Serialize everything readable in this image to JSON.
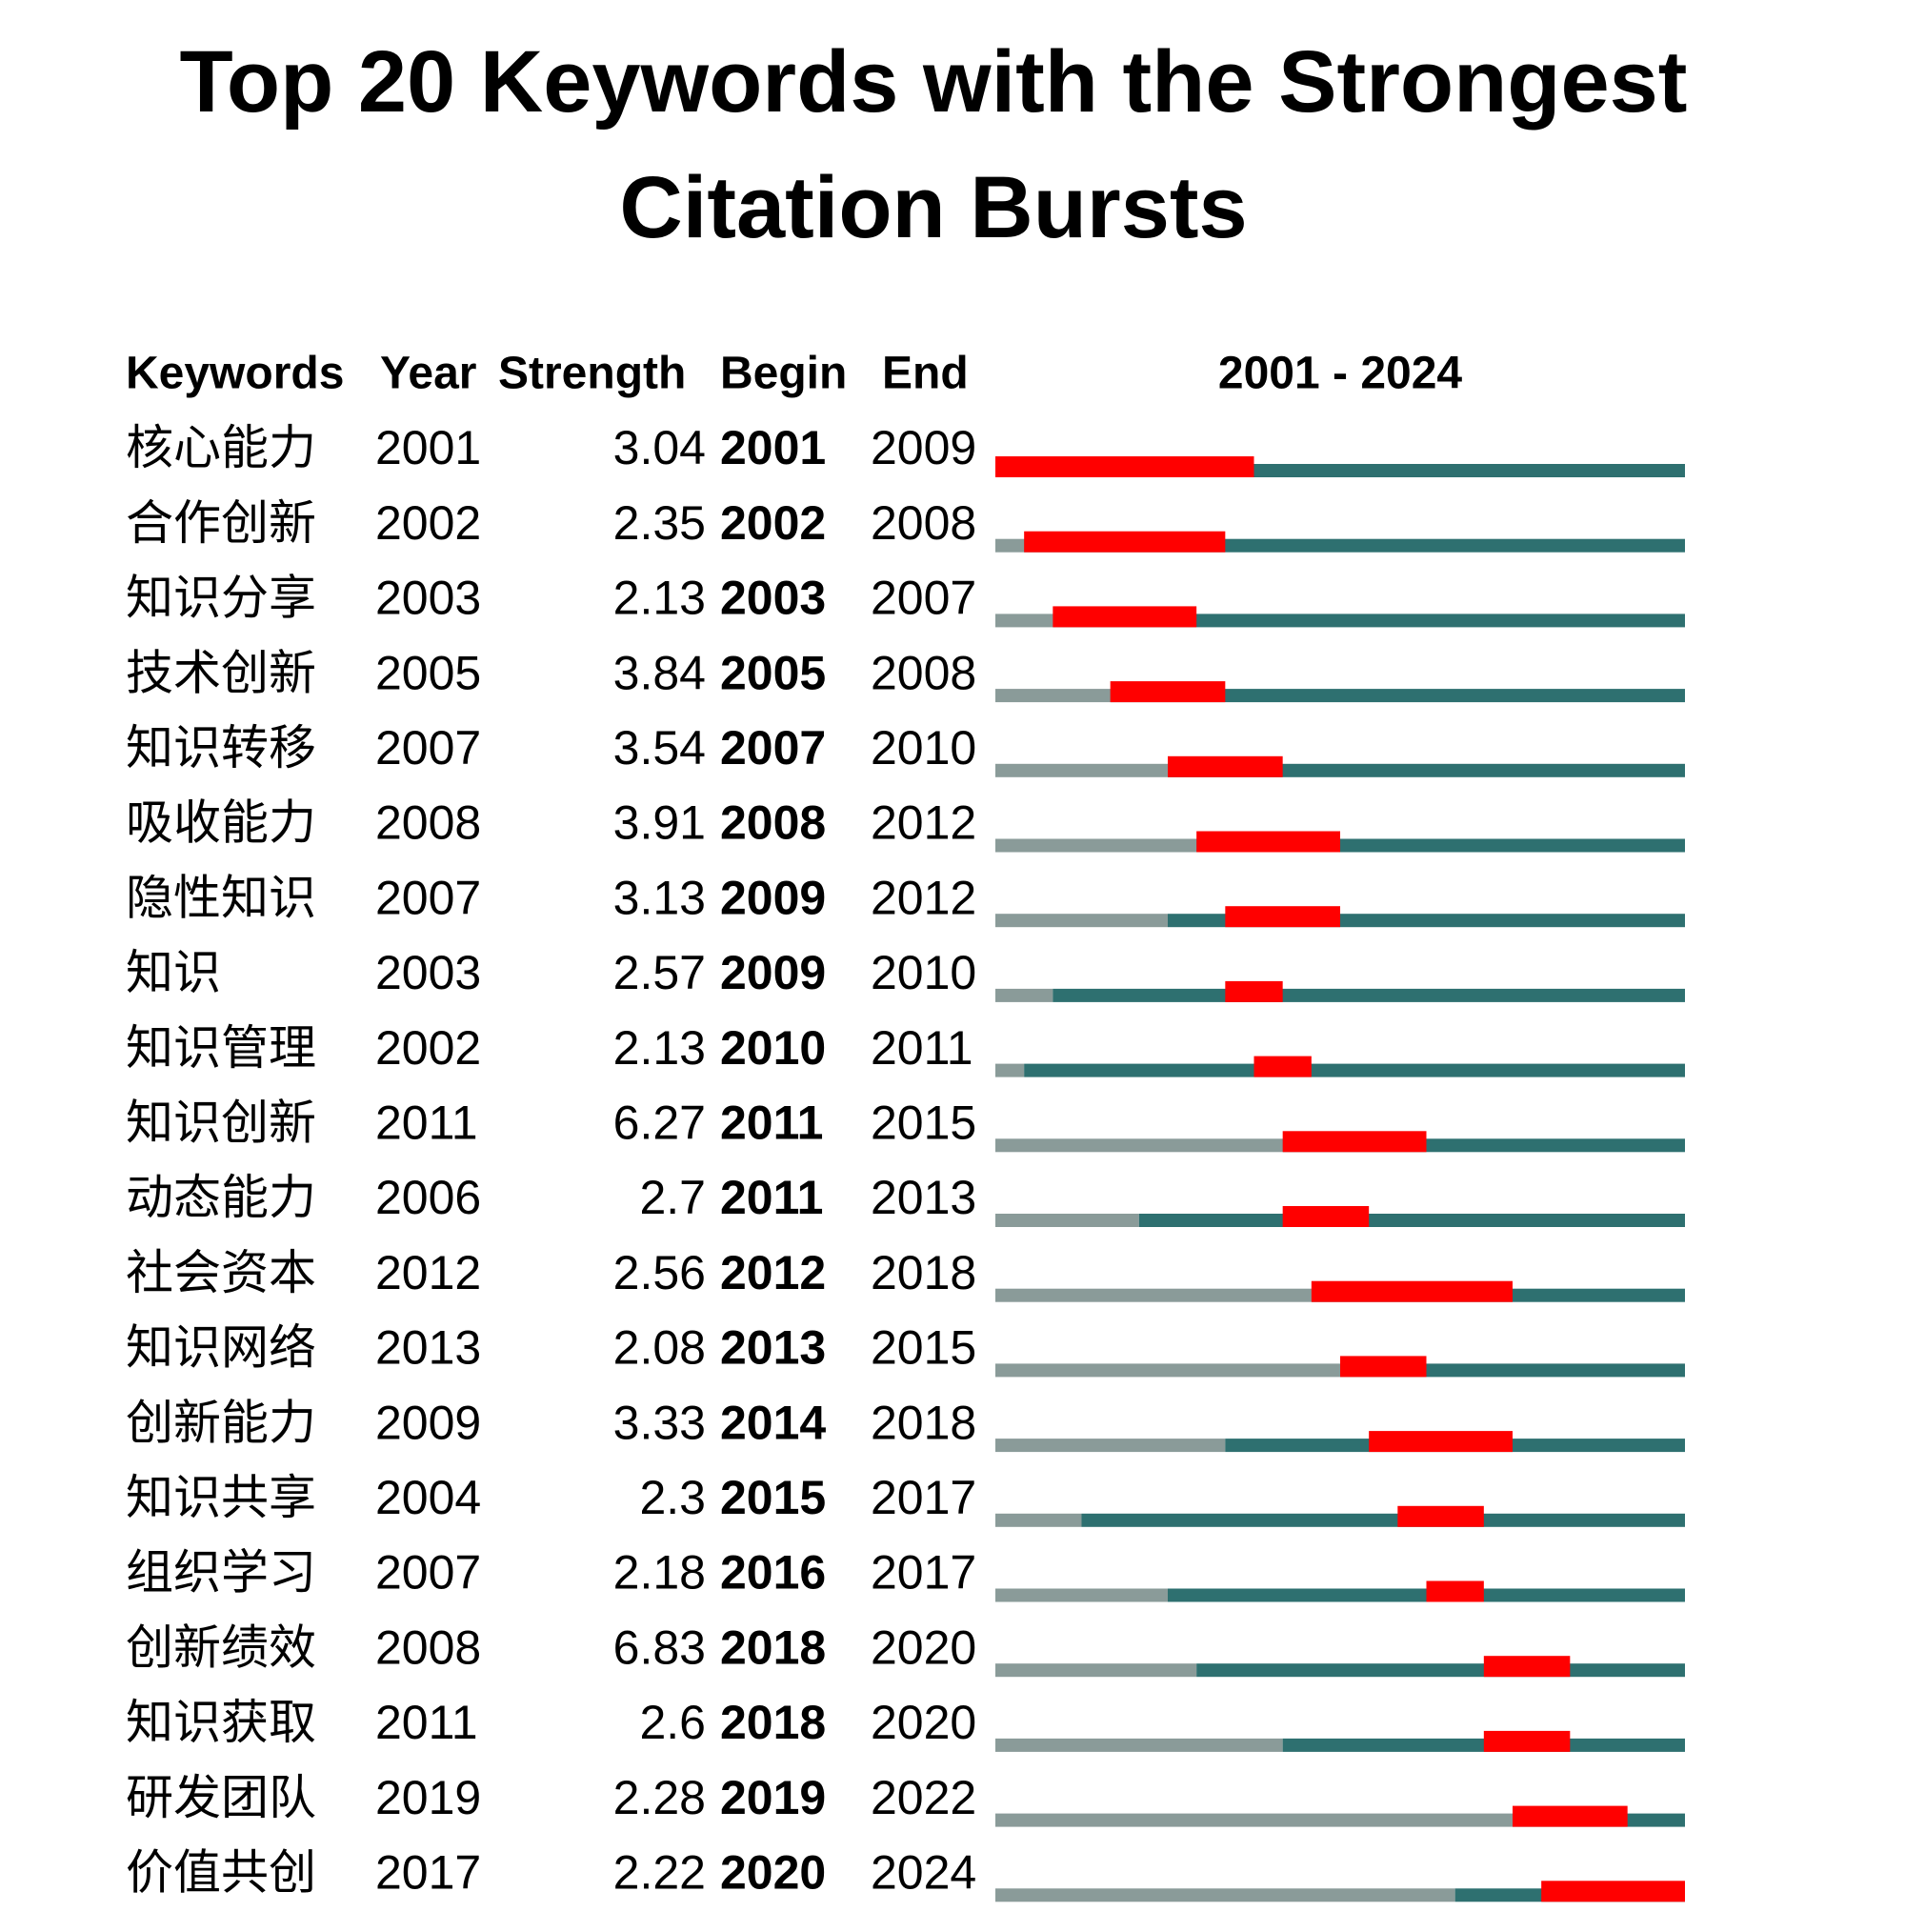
{
  "chart_data": {
    "type": "citation-burst",
    "title": "Top 20 Keywords with the Strongest Citation Bursts",
    "headers": [
      "Keywords",
      "Year",
      "Strength",
      "Begin",
      "End"
    ],
    "timeline_label": "2001 - 2024",
    "xlim": [
      2001,
      2024
    ],
    "colors": {
      "before": "#8a9b99",
      "after": "#2e7070",
      "burst": "#ff0000"
    },
    "rows": [
      {
        "keyword": "核心能力",
        "year": 2001,
        "strength": 3.04,
        "begin": 2001,
        "end": 2009
      },
      {
        "keyword": "合作创新",
        "year": 2002,
        "strength": 2.35,
        "begin": 2002,
        "end": 2008
      },
      {
        "keyword": "知识分享",
        "year": 2003,
        "strength": 2.13,
        "begin": 2003,
        "end": 2007
      },
      {
        "keyword": "技术创新",
        "year": 2005,
        "strength": 3.84,
        "begin": 2005,
        "end": 2008
      },
      {
        "keyword": "知识转移",
        "year": 2007,
        "strength": 3.54,
        "begin": 2007,
        "end": 2010
      },
      {
        "keyword": "吸收能力",
        "year": 2008,
        "strength": 3.91,
        "begin": 2008,
        "end": 2012
      },
      {
        "keyword": "隐性知识",
        "year": 2007,
        "strength": 3.13,
        "begin": 2009,
        "end": 2012
      },
      {
        "keyword": "知识",
        "year": 2003,
        "strength": 2.57,
        "begin": 2009,
        "end": 2010
      },
      {
        "keyword": "知识管理",
        "year": 2002,
        "strength": 2.13,
        "begin": 2010,
        "end": 2011
      },
      {
        "keyword": "知识创新",
        "year": 2011,
        "strength": 6.27,
        "begin": 2011,
        "end": 2015
      },
      {
        "keyword": "动态能力",
        "year": 2006,
        "strength": 2.7,
        "begin": 2011,
        "end": 2013
      },
      {
        "keyword": "社会资本",
        "year": 2012,
        "strength": 2.56,
        "begin": 2012,
        "end": 2018
      },
      {
        "keyword": "知识网络",
        "year": 2013,
        "strength": 2.08,
        "begin": 2013,
        "end": 2015
      },
      {
        "keyword": "创新能力",
        "year": 2009,
        "strength": 3.33,
        "begin": 2014,
        "end": 2018
      },
      {
        "keyword": "知识共享",
        "year": 2004,
        "strength": 2.3,
        "begin": 2015,
        "end": 2017
      },
      {
        "keyword": "组织学习",
        "year": 2007,
        "strength": 2.18,
        "begin": 2016,
        "end": 2017
      },
      {
        "keyword": "创新绩效",
        "year": 2008,
        "strength": 6.83,
        "begin": 2018,
        "end": 2020
      },
      {
        "keyword": "知识获取",
        "year": 2011,
        "strength": 2.6,
        "begin": 2018,
        "end": 2020
      },
      {
        "keyword": "研发团队",
        "year": 2019,
        "strength": 2.28,
        "begin": 2019,
        "end": 2022
      },
      {
        "keyword": "价值共创",
        "year": 2017,
        "strength": 2.22,
        "begin": 2020,
        "end": 2024
      }
    ]
  }
}
